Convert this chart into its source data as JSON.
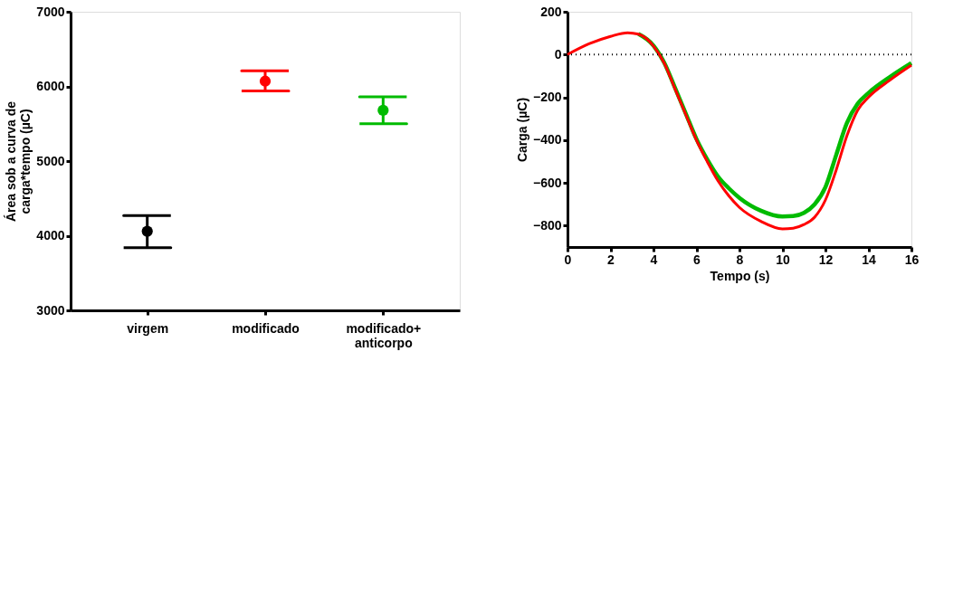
{
  "chart_data": [
    {
      "type": "scatter",
      "ylabel": "Área sob a curva de carga*tempo (µC)",
      "categories": [
        "virgem",
        "modificado",
        "modificado+ anticorpo"
      ],
      "values": [
        4060,
        6070,
        5680
      ],
      "colors": [
        "#000000",
        "#ff0000",
        "#00bb00"
      ],
      "errors": [
        [
          3840,
          4270
        ],
        [
          5940,
          6210
        ],
        [
          5500,
          5860
        ]
      ],
      "ylim": [
        3000,
        7000
      ],
      "yticks": [
        3000,
        4000,
        5000,
        6000,
        7000
      ],
      "marker": "circle",
      "grid": false,
      "legend": false
    },
    {
      "type": "line",
      "xlabel": "Tempo (s)",
      "ylabel": "Carga (µC)",
      "xlim": [
        0,
        16
      ],
      "xticks": [
        0,
        2,
        4,
        6,
        8,
        10,
        12,
        14,
        16
      ],
      "ylim": [
        -900,
        200
      ],
      "yticks": [
        -800,
        -600,
        -400,
        -200,
        0,
        200
      ],
      "grid": false,
      "legend": false,
      "line_style": "solid",
      "ref_lines": [
        {
          "axis": "y",
          "value": 0,
          "line_style": "dotted",
          "color": "#000000"
        }
      ],
      "series": [
        {
          "color": "#00bb00",
          "x": [
            3.3,
            4,
            4.5,
            5,
            5.5,
            6,
            6.5,
            7,
            7.5,
            8,
            9,
            10,
            10.5,
            11,
            11.5,
            12,
            12.5,
            13,
            13.5,
            14,
            15,
            16
          ],
          "values": [
            96,
            42,
            -38,
            -155,
            -275,
            -395,
            -490,
            -570,
            -625,
            -670,
            -730,
            -757,
            -755,
            -740,
            -700,
            -620,
            -470,
            -320,
            -230,
            -180,
            -105,
            -40
          ]
        },
        {
          "color": "#ff0000",
          "x": [
            0,
            1,
            2,
            2.8,
            3.3,
            4,
            4.5,
            5,
            5.5,
            6,
            6.5,
            7,
            7.5,
            8,
            9,
            10,
            10.5,
            11,
            11.5,
            12,
            12.5,
            13,
            13.5,
            14,
            15,
            16
          ],
          "values": [
            0,
            50,
            85,
            102,
            95,
            40,
            -40,
            -160,
            -280,
            -400,
            -500,
            -590,
            -660,
            -715,
            -780,
            -815,
            -812,
            -795,
            -760,
            -680,
            -540,
            -380,
            -260,
            -200,
            -120,
            -50
          ]
        }
      ]
    }
  ]
}
